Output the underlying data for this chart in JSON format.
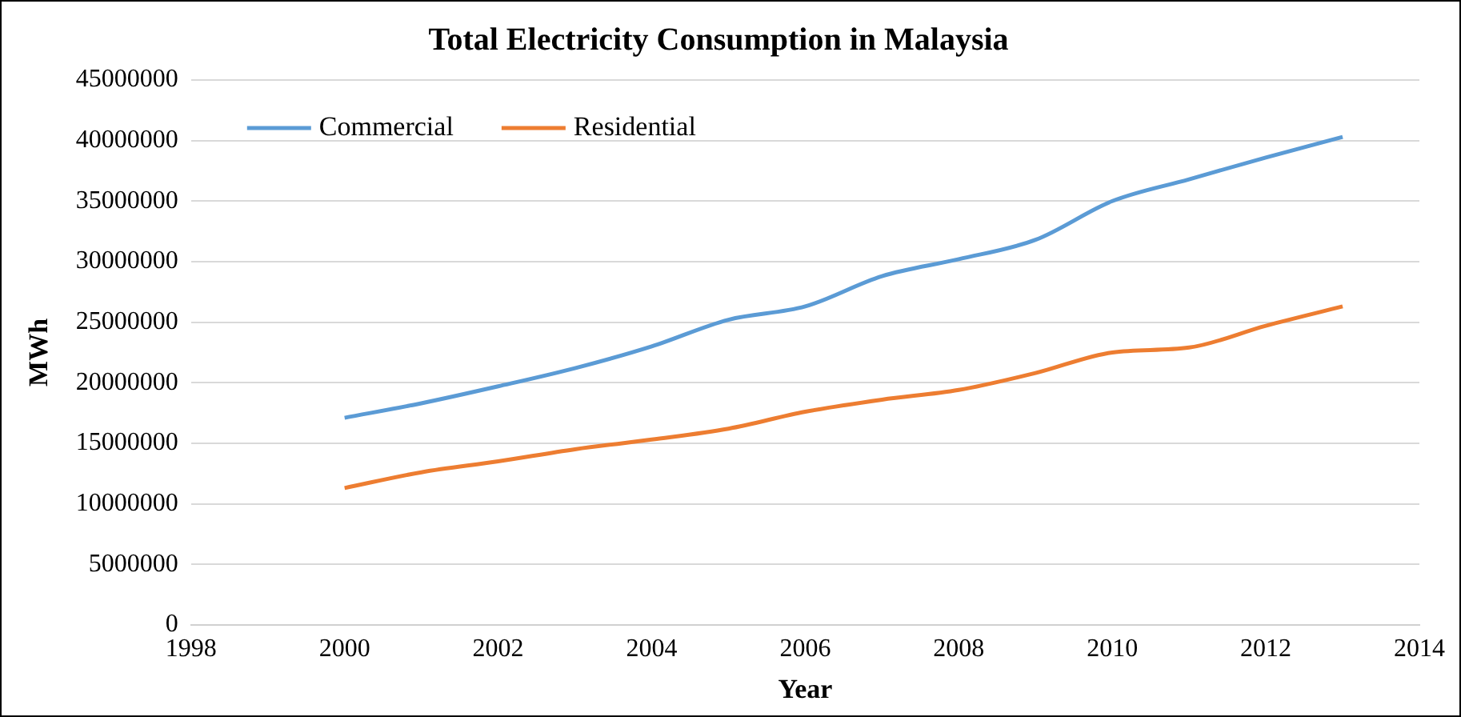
{
  "chart_data": {
    "type": "line",
    "title": "Total Electricity Consumption in Malaysia",
    "xlabel": "Year",
    "ylabel": "MWh",
    "x": [
      2000,
      2001,
      2002,
      2003,
      2004,
      2005,
      2006,
      2007,
      2008,
      2009,
      2010,
      2011,
      2012,
      2013
    ],
    "series": [
      {
        "name": "Commercial",
        "color": "#5b9bd5",
        "values": [
          17100000,
          18300000,
          19700000,
          21200000,
          23000000,
          25200000,
          26300000,
          28800000,
          30200000,
          31800000,
          35000000,
          36800000,
          38600000,
          40300000
        ]
      },
      {
        "name": "Residential",
        "color": "#ed7d31",
        "values": [
          11300000,
          12600000,
          13500000,
          14500000,
          15300000,
          16200000,
          17600000,
          18600000,
          19400000,
          20800000,
          22500000,
          22900000,
          24700000,
          26300000
        ]
      }
    ],
    "xlim": [
      1998,
      2014
    ],
    "xticks": [
      1998,
      2000,
      2002,
      2004,
      2006,
      2008,
      2010,
      2012,
      2014
    ],
    "ylim": [
      0,
      45000000
    ],
    "yticks": [
      0,
      5000000,
      10000000,
      15000000,
      20000000,
      25000000,
      30000000,
      35000000,
      40000000,
      45000000
    ],
    "grid": "y",
    "legend": "top left",
    "marker": "none",
    "line_style": "solid"
  }
}
